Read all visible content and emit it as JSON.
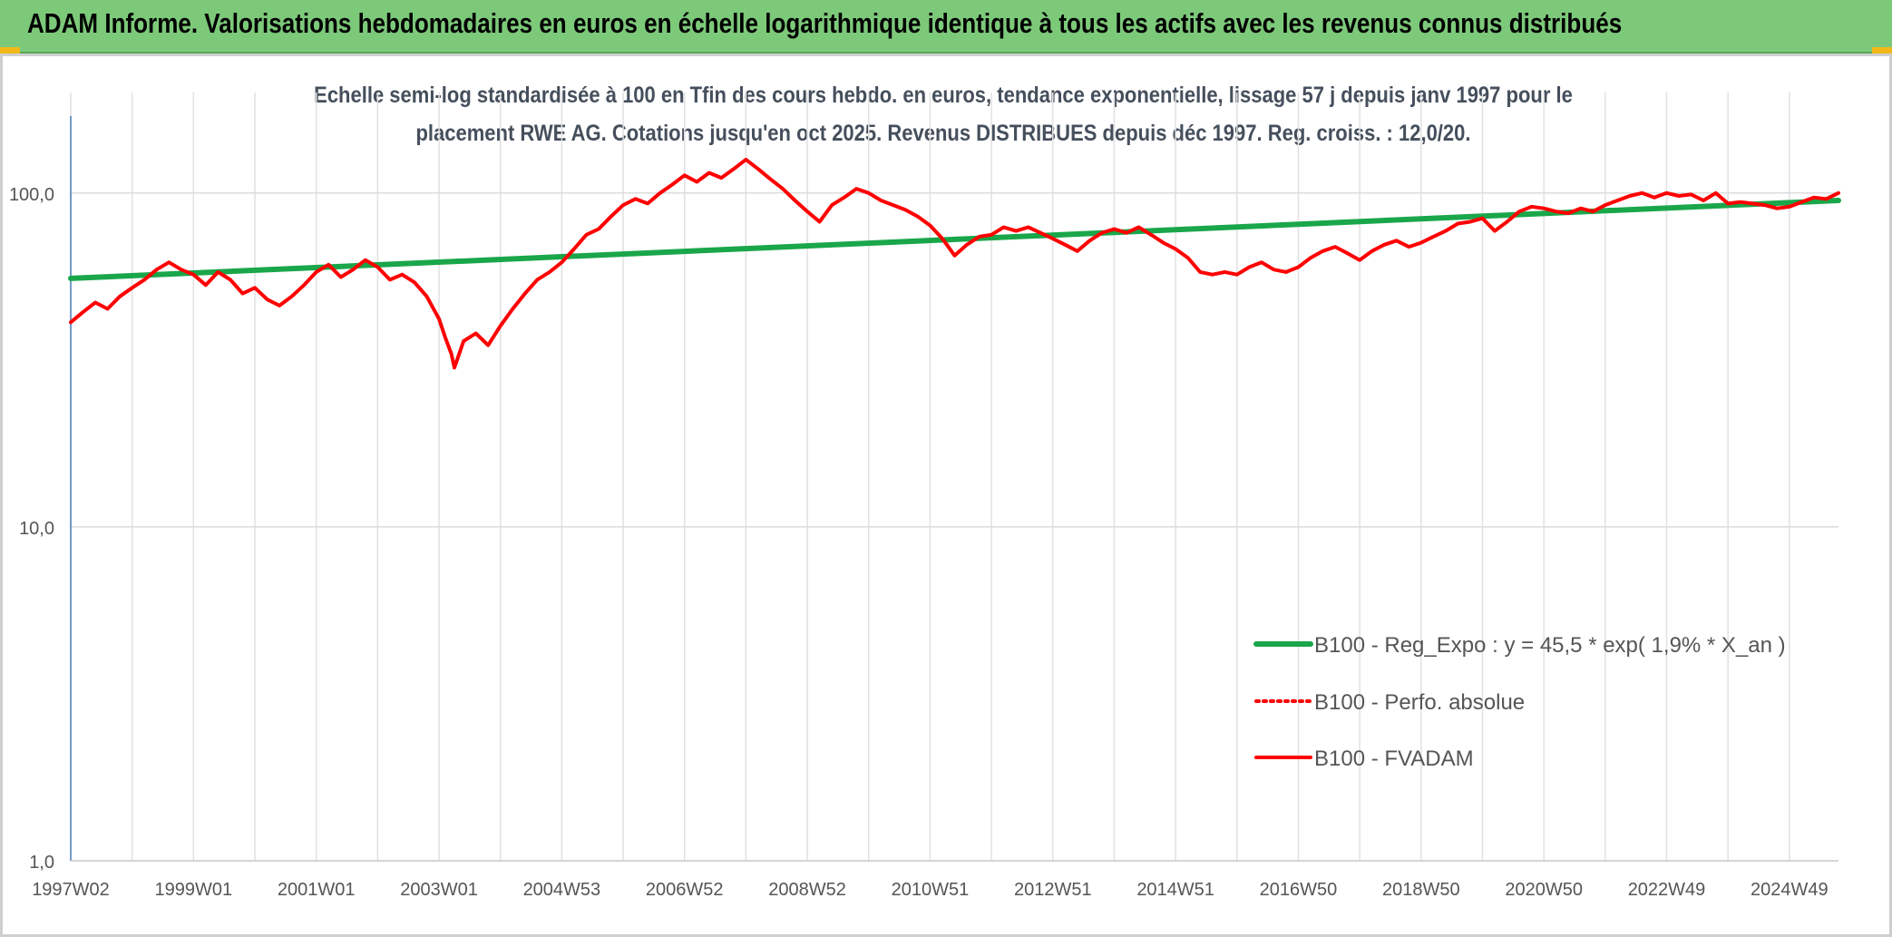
{
  "banner": {
    "title": "ADAM Informe. Valorisations hebdomadaires en euros en échelle logarithmique identique à tous les actifs avec les revenus connus distribués",
    "background": "#7dc97a",
    "corner_color": "#f2b81a"
  },
  "chart_data": {
    "type": "line",
    "title_line1": "Echelle semi-log standardisée à 100 en Tfin des cours hebdo. en euros, tendance exponentielle, lissage 57 j depuis janv 1997 pour le",
    "title_line2": "placement RWE AG. Cotations jusqu'en oct 2025. Revenus DISTRIBUES depuis déc 1997. Reg. croiss. : 12,0/20.",
    "y_scale": "log",
    "ylim": [
      1,
      200
    ],
    "y_ticks": [
      1,
      10,
      100
    ],
    "y_tick_labels": [
      "1,0",
      "10,0",
      "100,0"
    ],
    "x_range": [
      1997.0,
      2025.8
    ],
    "x_ticks": [
      {
        "label": "1997W02",
        "x": 1997.0
      },
      {
        "label": "1999W01",
        "x": 1999.0
      },
      {
        "label": "2001W01",
        "x": 2001.0
      },
      {
        "label": "2003W01",
        "x": 2003.0
      },
      {
        "label": "2004W53",
        "x": 2005.0
      },
      {
        "label": "2006W52",
        "x": 2007.0
      },
      {
        "label": "2008W52",
        "x": 2009.0
      },
      {
        "label": "2010W51",
        "x": 2011.0
      },
      {
        "label": "2012W51",
        "x": 2013.0
      },
      {
        "label": "2014W51",
        "x": 2015.0
      },
      {
        "label": "2016W50",
        "x": 2017.0
      },
      {
        "label": "2018W50",
        "x": 2019.0
      },
      {
        "label": "2020W50",
        "x": 2021.0
      },
      {
        "label": "2022W49",
        "x": 2023.0
      },
      {
        "label": "2024W49",
        "x": 2025.0
      }
    ],
    "grid": "vertical and horizontal light gray",
    "legend_position": "lower-right",
    "series": [
      {
        "name": "B100 - Reg_Expo : y = 45,5 * exp( 1,9% *  X_an )",
        "color": "#1aa64a",
        "style": "solid",
        "points": [
          [
            1997.0,
            55.5
          ],
          [
            2025.8,
            95.0
          ]
        ]
      },
      {
        "name": "B100 - Perfo. absolue",
        "color": "#ff0000",
        "style": "dotted",
        "points": []
      },
      {
        "name": "B100 - FVADAM",
        "color": "#ff0000",
        "style": "solid",
        "points": [
          [
            1997.0,
            41
          ],
          [
            1997.2,
            44
          ],
          [
            1997.4,
            47
          ],
          [
            1997.6,
            45
          ],
          [
            1997.8,
            49
          ],
          [
            1998.0,
            52
          ],
          [
            1998.2,
            55
          ],
          [
            1998.4,
            59
          ],
          [
            1998.6,
            62
          ],
          [
            1998.8,
            59
          ],
          [
            1999.0,
            57
          ],
          [
            1999.2,
            53
          ],
          [
            1999.4,
            58
          ],
          [
            1999.6,
            55
          ],
          [
            1999.8,
            50
          ],
          [
            2000.0,
            52
          ],
          [
            2000.2,
            48
          ],
          [
            2000.4,
            46
          ],
          [
            2000.6,
            49
          ],
          [
            2000.8,
            53
          ],
          [
            2001.0,
            58
          ],
          [
            2001.2,
            61
          ],
          [
            2001.4,
            56
          ],
          [
            2001.6,
            59
          ],
          [
            2001.8,
            63
          ],
          [
            2002.0,
            60
          ],
          [
            2002.2,
            55
          ],
          [
            2002.4,
            57
          ],
          [
            2002.6,
            54
          ],
          [
            2002.8,
            49
          ],
          [
            2003.0,
            42
          ],
          [
            2003.1,
            37
          ],
          [
            2003.2,
            33
          ],
          [
            2003.25,
            30
          ],
          [
            2003.4,
            36
          ],
          [
            2003.6,
            38
          ],
          [
            2003.8,
            35
          ],
          [
            2004.0,
            40
          ],
          [
            2004.2,
            45
          ],
          [
            2004.4,
            50
          ],
          [
            2004.6,
            55
          ],
          [
            2004.8,
            58
          ],
          [
            2005.0,
            62
          ],
          [
            2005.2,
            68
          ],
          [
            2005.4,
            75
          ],
          [
            2005.6,
            78
          ],
          [
            2005.8,
            85
          ],
          [
            2006.0,
            92
          ],
          [
            2006.2,
            96
          ],
          [
            2006.4,
            93
          ],
          [
            2006.6,
            100
          ],
          [
            2006.8,
            106
          ],
          [
            2007.0,
            113
          ],
          [
            2007.2,
            108
          ],
          [
            2007.4,
            115
          ],
          [
            2007.6,
            111
          ],
          [
            2007.8,
            118
          ],
          [
            2008.0,
            126
          ],
          [
            2008.2,
            118
          ],
          [
            2008.4,
            110
          ],
          [
            2008.6,
            103
          ],
          [
            2008.8,
            95
          ],
          [
            2009.0,
            88
          ],
          [
            2009.2,
            82
          ],
          [
            2009.4,
            92
          ],
          [
            2009.6,
            97
          ],
          [
            2009.8,
            103
          ],
          [
            2010.0,
            100
          ],
          [
            2010.2,
            95
          ],
          [
            2010.4,
            92
          ],
          [
            2010.6,
            89
          ],
          [
            2010.8,
            85
          ],
          [
            2011.0,
            80
          ],
          [
            2011.2,
            73
          ],
          [
            2011.4,
            65
          ],
          [
            2011.6,
            70
          ],
          [
            2011.8,
            74
          ],
          [
            2012.0,
            75
          ],
          [
            2012.2,
            79
          ],
          [
            2012.4,
            77
          ],
          [
            2012.6,
            79
          ],
          [
            2012.8,
            76
          ],
          [
            2013.0,
            73
          ],
          [
            2013.2,
            70
          ],
          [
            2013.4,
            67
          ],
          [
            2013.6,
            72
          ],
          [
            2013.8,
            76
          ],
          [
            2014.0,
            78
          ],
          [
            2014.2,
            76
          ],
          [
            2014.4,
            79
          ],
          [
            2014.6,
            75
          ],
          [
            2014.8,
            71
          ],
          [
            2015.0,
            68
          ],
          [
            2015.2,
            64
          ],
          [
            2015.4,
            58
          ],
          [
            2015.6,
            57
          ],
          [
            2015.8,
            58
          ],
          [
            2016.0,
            57
          ],
          [
            2016.2,
            60
          ],
          [
            2016.4,
            62
          ],
          [
            2016.6,
            59
          ],
          [
            2016.8,
            58
          ],
          [
            2017.0,
            60
          ],
          [
            2017.2,
            64
          ],
          [
            2017.4,
            67
          ],
          [
            2017.6,
            69
          ],
          [
            2017.8,
            66
          ],
          [
            2018.0,
            63
          ],
          [
            2018.2,
            67
          ],
          [
            2018.4,
            70
          ],
          [
            2018.6,
            72
          ],
          [
            2018.8,
            69
          ],
          [
            2019.0,
            71
          ],
          [
            2019.2,
            74
          ],
          [
            2019.4,
            77
          ],
          [
            2019.6,
            81
          ],
          [
            2019.8,
            82
          ],
          [
            2020.0,
            84
          ],
          [
            2020.2,
            77
          ],
          [
            2020.4,
            82
          ],
          [
            2020.6,
            88
          ],
          [
            2020.8,
            91
          ],
          [
            2021.0,
            90
          ],
          [
            2021.2,
            88
          ],
          [
            2021.4,
            87
          ],
          [
            2021.6,
            90
          ],
          [
            2021.8,
            88
          ],
          [
            2022.0,
            92
          ],
          [
            2022.2,
            95
          ],
          [
            2022.4,
            98
          ],
          [
            2022.6,
            100
          ],
          [
            2022.8,
            97
          ],
          [
            2023.0,
            100
          ],
          [
            2023.2,
            98
          ],
          [
            2023.4,
            99
          ],
          [
            2023.6,
            95
          ],
          [
            2023.8,
            100
          ],
          [
            2024.0,
            93
          ],
          [
            2024.2,
            94
          ],
          [
            2024.4,
            93
          ],
          [
            2024.6,
            92
          ],
          [
            2024.8,
            90
          ],
          [
            2025.0,
            91
          ],
          [
            2025.2,
            94
          ],
          [
            2025.4,
            97
          ],
          [
            2025.6,
            96
          ],
          [
            2025.8,
            100
          ]
        ]
      }
    ]
  }
}
